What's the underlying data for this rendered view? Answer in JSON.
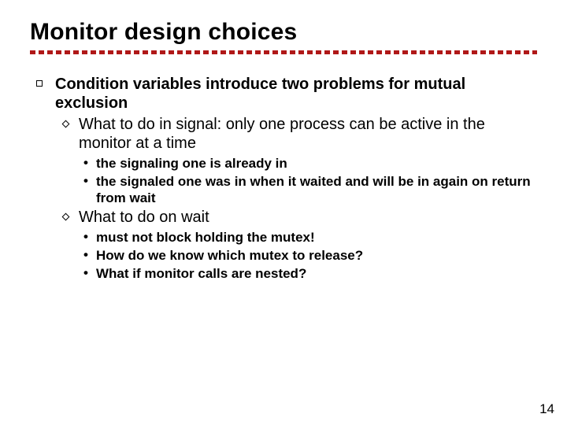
{
  "colors": {
    "hr": "#b01818",
    "text": "#000000",
    "background": "#ffffff"
  },
  "title": "Monitor design choices",
  "page_number": "14",
  "bullets": {
    "l1_0": "Condition variables introduce two problems for mutual exclusion",
    "l2_0": "What to do in signal: only one process can be active in the monitor at a time",
    "l3_0": "the signaling one is already in",
    "l3_1": "the signaled one was in when it waited and will be in again on return from wait",
    "l2_1": "What to do on wait",
    "l3_2": "must not block holding the mutex!",
    "l3_3": "How do we know which mutex to release?",
    "l3_4": "What if monitor calls are nested?"
  }
}
